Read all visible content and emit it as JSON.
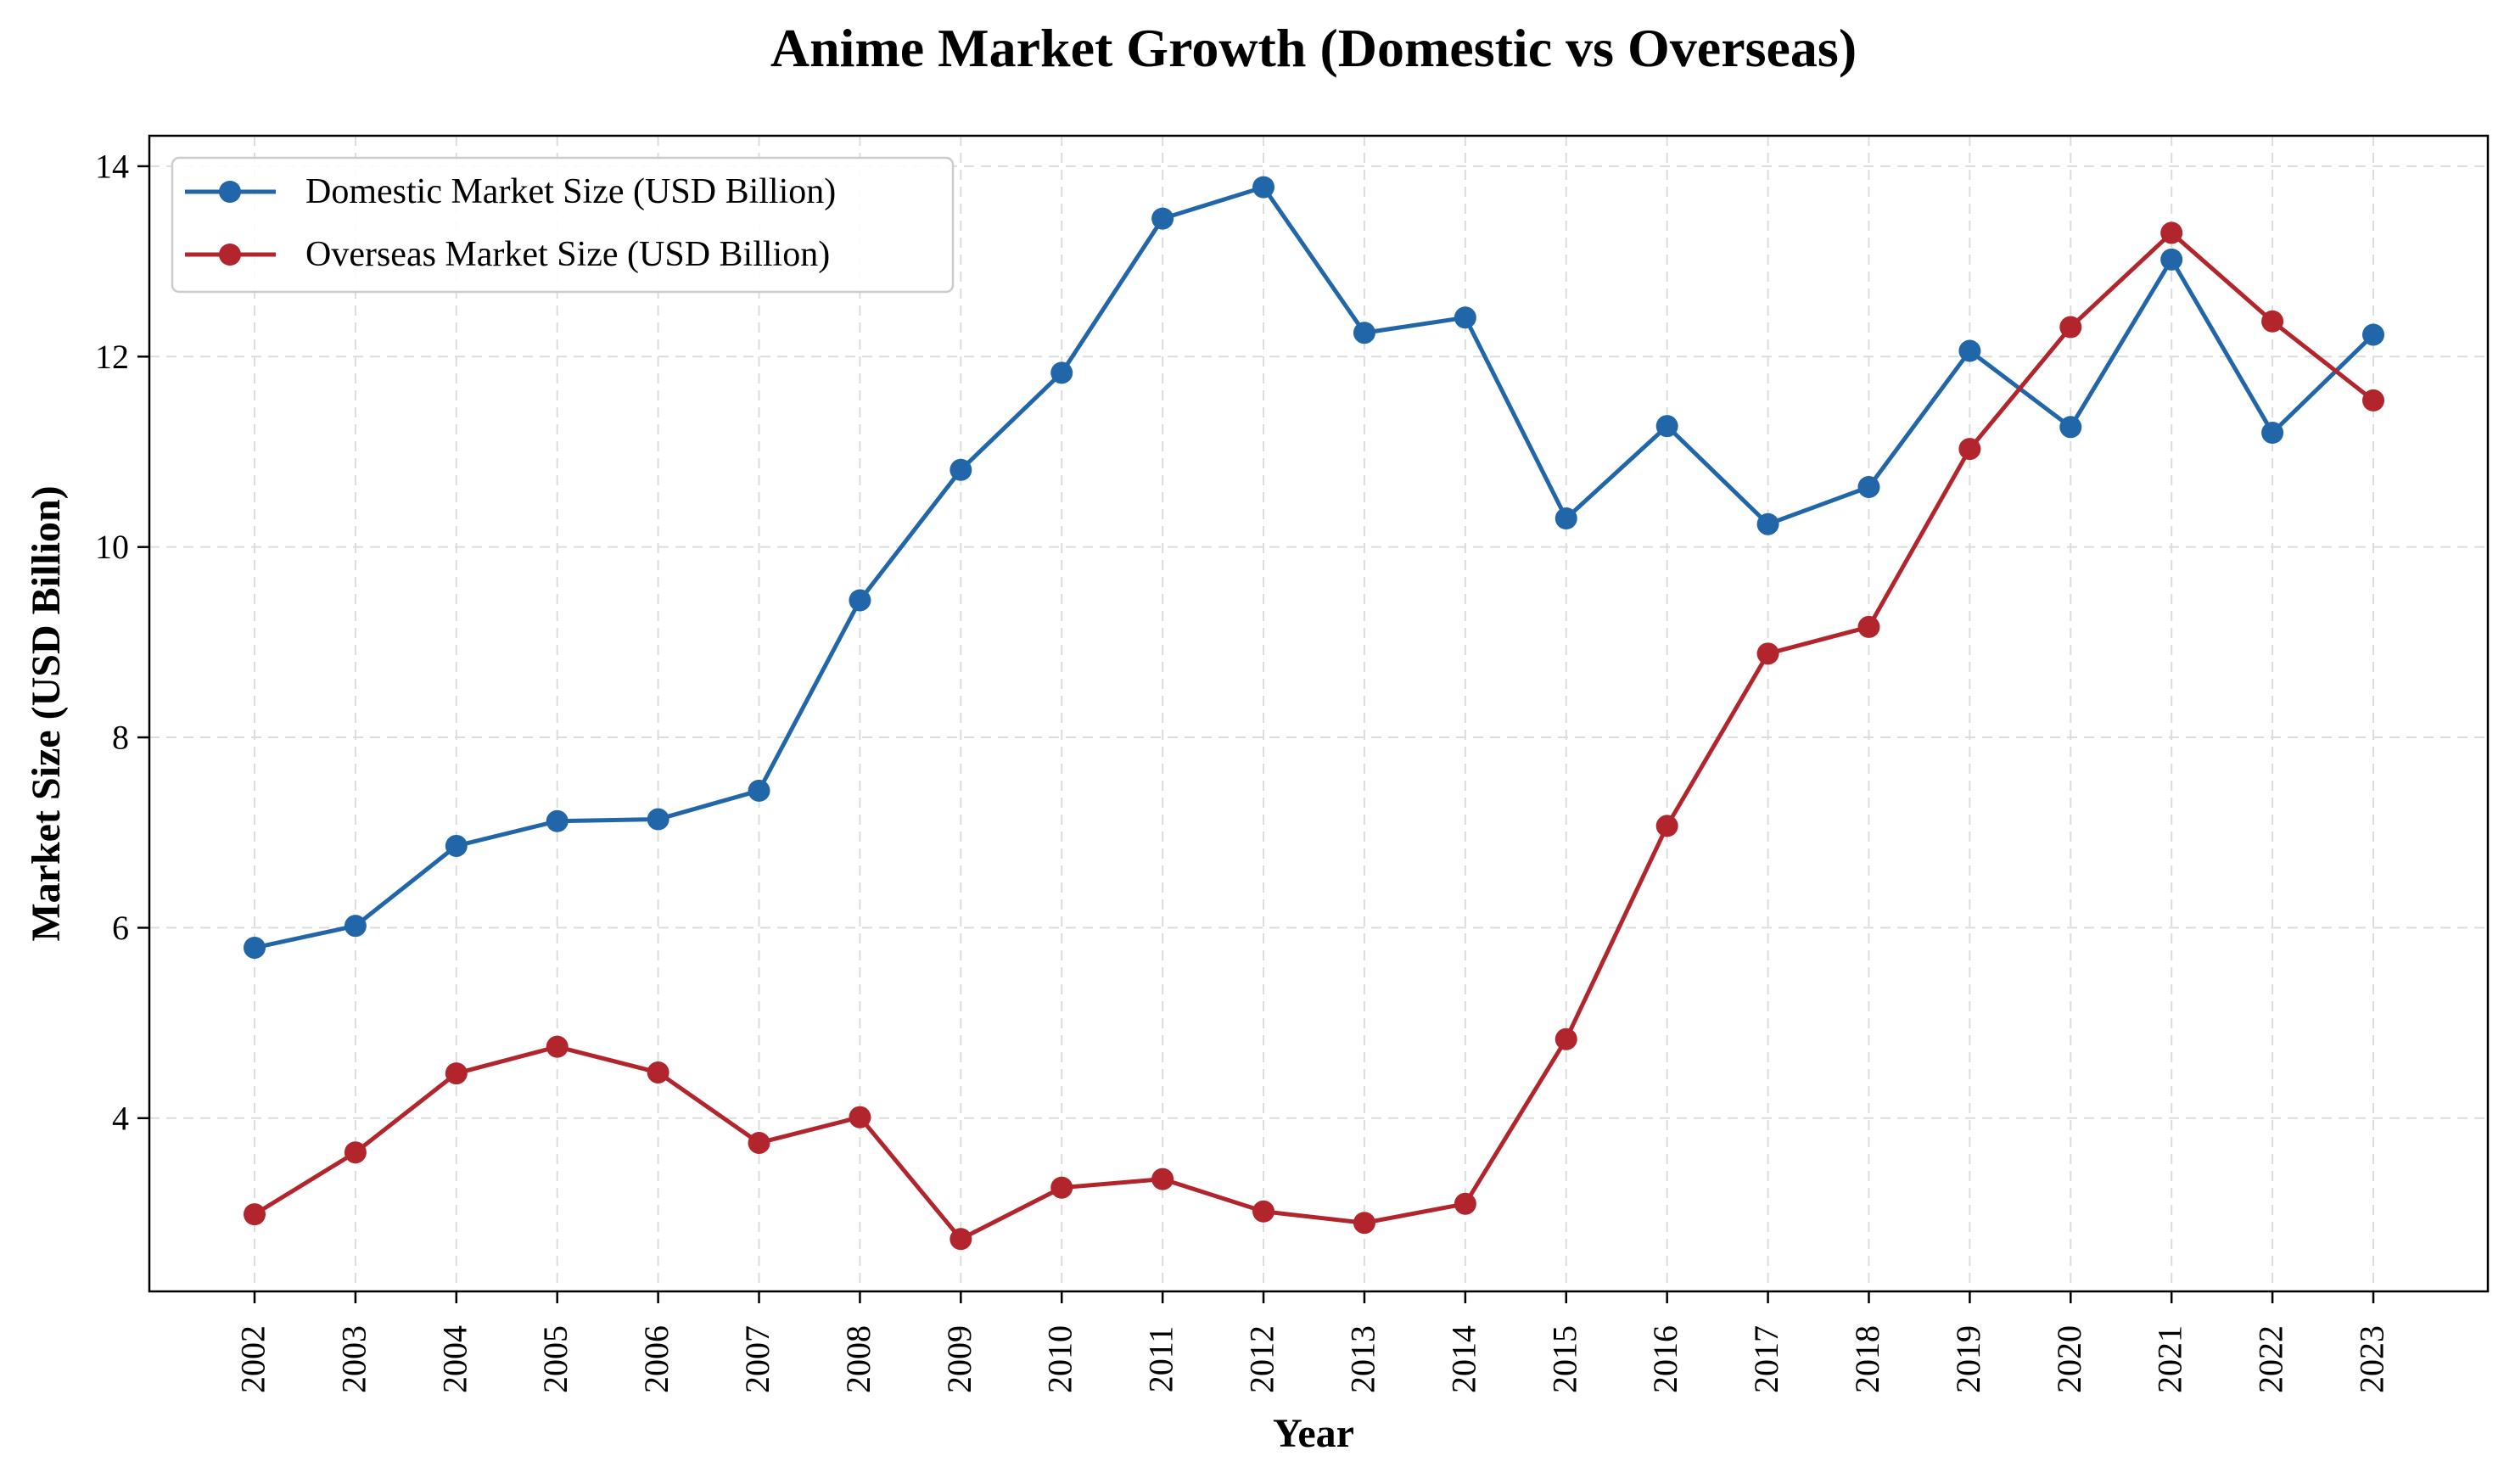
{
  "chart_data": {
    "type": "line",
    "title": "Anime Market Growth (Domestic vs Overseas)",
    "xlabel": "Year",
    "ylabel": "Market Size (USD Billion)",
    "x": [
      "2002",
      "2003",
      "2004",
      "2005",
      "2006",
      "2007",
      "2008",
      "2009",
      "2010",
      "2011",
      "2012",
      "2013",
      "2014",
      "2015",
      "2016",
      "2017",
      "2018",
      "2019",
      "2020",
      "2021",
      "2022",
      "2023"
    ],
    "yticks": [
      4,
      6,
      8,
      10,
      12,
      14
    ],
    "ylim": [
      2.18,
      14.32
    ],
    "grid": true,
    "legend_position": "top-left",
    "series": [
      {
        "name": "Domestic Market Size (USD Billion)",
        "color": "#2166a8",
        "values": [
          5.79,
          6.02,
          6.86,
          7.12,
          7.14,
          7.44,
          9.44,
          10.81,
          11.83,
          13.45,
          13.78,
          12.25,
          12.41,
          10.3,
          11.27,
          10.24,
          10.63,
          12.06,
          11.26,
          13.02,
          11.2,
          12.23
        ]
      },
      {
        "name": "Overseas Market Size (USD Billion)",
        "color": "#b2252c",
        "values": [
          2.99,
          3.64,
          4.47,
          4.75,
          4.48,
          3.74,
          4.01,
          2.73,
          3.27,
          3.36,
          3.02,
          2.9,
          3.1,
          4.83,
          7.07,
          8.88,
          9.16,
          11.03,
          12.31,
          13.3,
          12.37,
          11.54
        ]
      }
    ]
  }
}
